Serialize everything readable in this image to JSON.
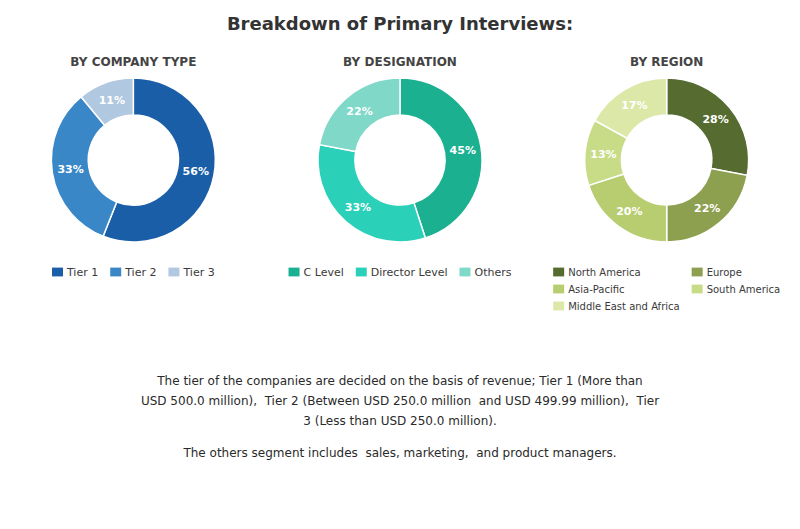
{
  "title": "Breakdown of Primary Interviews:",
  "chart_data": [
    {
      "type": "pie",
      "subtitle": "BY COMPANY TYPE",
      "categories": [
        "Tier 1",
        "Tier 2",
        "Tier 3"
      ],
      "values": [
        56,
        33,
        11
      ],
      "value_labels": [
        "56%",
        "33%",
        "11%"
      ],
      "colors": [
        "#1a5ea8",
        "#3a87c8",
        "#b0c8e0"
      ],
      "data_labels": true
    },
    {
      "type": "pie",
      "subtitle": "BY DESIGNATION",
      "categories": [
        "C Level",
        "Director Level",
        "Others"
      ],
      "values": [
        45,
        33,
        22
      ],
      "value_labels": [
        "45%",
        "33%",
        "22%"
      ],
      "colors": [
        "#1ab090",
        "#2ad0b8",
        "#80d8c8"
      ],
      "data_labels": true
    },
    {
      "type": "pie",
      "subtitle": "BY REGION",
      "categories": [
        "North America",
        "Europe",
        "Asia-Pacific",
        "South America",
        "Middle East and Africa"
      ],
      "values": [
        28,
        22,
        20,
        13,
        17
      ],
      "value_labels": [
        "28%",
        "22%",
        "20%",
        "13%",
        "17%"
      ],
      "colors": [
        "#556b2f",
        "#8da050",
        "#b8cc70",
        "#c8dc88",
        "#dce8a8"
      ],
      "data_labels": true
    }
  ],
  "annotations": [
    "The tier of the companies are decided on the basis of revenue; Tier 1 (More than\nUSD 500.0 million),  Tier 2 (Between USD 250.0 million  and USD 499.99 million),  Tier\n3 (Less than USD 250.0 million).",
    "The others segment includes  sales, marketing,  and product managers."
  ]
}
